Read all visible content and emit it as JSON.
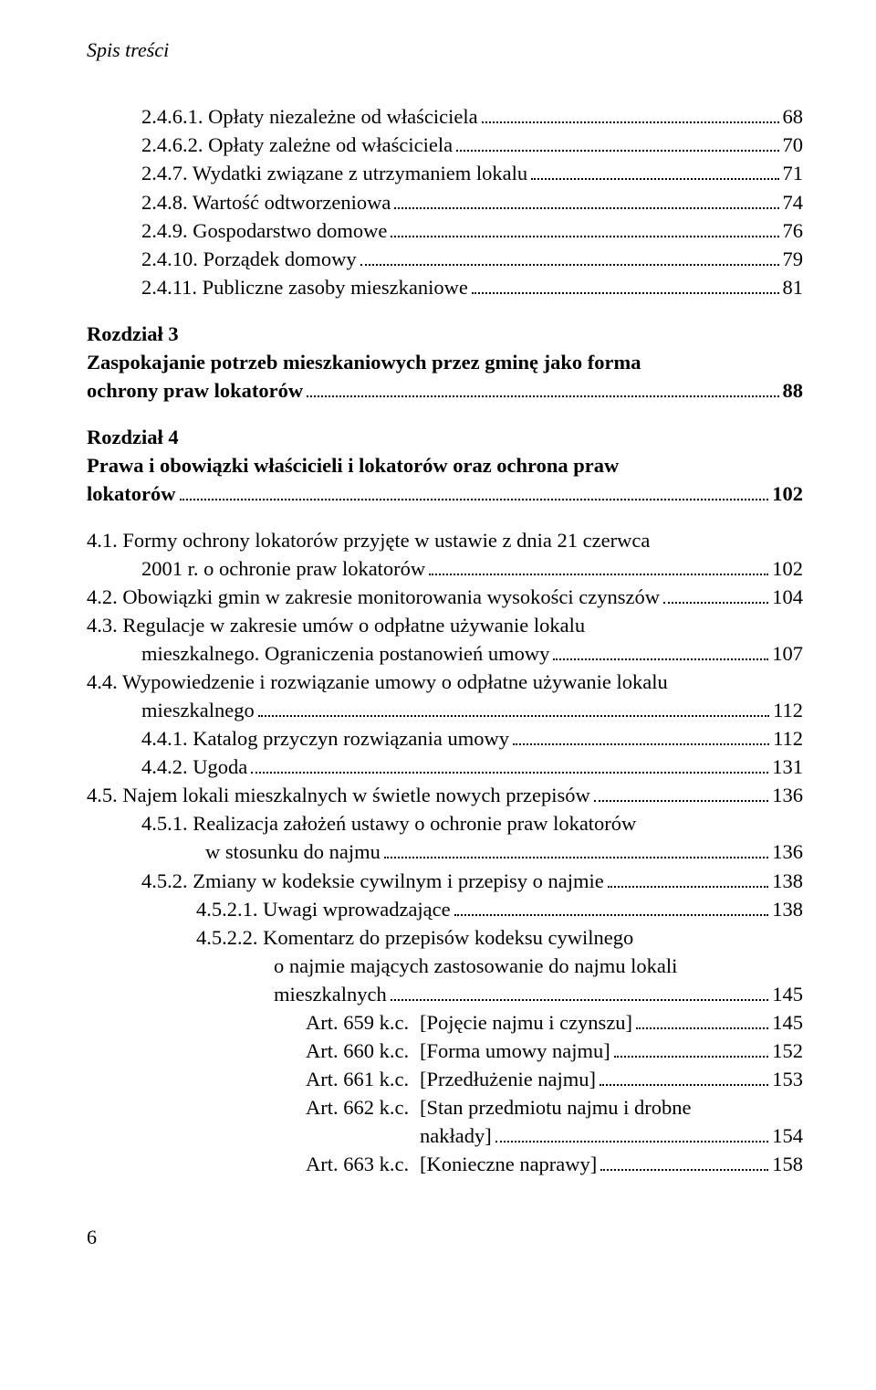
{
  "header": "Spis treści",
  "footer_page": "6",
  "entries": [
    {
      "type": "item",
      "indent": "indent-1",
      "num": "2.4.6.1.",
      "text": "Opłaty niezależne od właściciela",
      "page": "68"
    },
    {
      "type": "item",
      "indent": "indent-1",
      "num": "2.4.6.2.",
      "text": "Opłaty zależne od właściciela",
      "page": "70"
    },
    {
      "type": "item",
      "indent": "indent-1",
      "num": "2.4.7.",
      "text": "Wydatki związane z utrzymaniem lokalu",
      "page": "71"
    },
    {
      "type": "item",
      "indent": "indent-1",
      "num": "2.4.8.",
      "text": "Wartość odtworzeniowa",
      "page": "74"
    },
    {
      "type": "item",
      "indent": "indent-1",
      "num": "2.4.9.",
      "text": "Gospodarstwo domowe",
      "page": "76"
    },
    {
      "type": "item",
      "indent": "indent-1",
      "num": "2.4.10.",
      "text": "Porządek domowy",
      "page": "79"
    },
    {
      "type": "item",
      "indent": "indent-1",
      "num": "2.4.11.",
      "text": "Publiczne zasoby mieszkaniowe",
      "page": "81"
    },
    {
      "type": "chapter",
      "line1": "Rozdział 3",
      "line2": "Zaspokajanie potrzeb mieszkaniowych przez gminę jako forma",
      "line3": "ochrony praw lokatorów",
      "page": "88"
    },
    {
      "type": "chapter",
      "line1": "Rozdział 4",
      "line2": "Prawa i obowiązki właścicieli i lokatorów oraz ochrona praw",
      "line3": "lokatorów",
      "page": "102"
    },
    {
      "type": "multiline",
      "hang": "hang-2",
      "num": "4.1.",
      "textLines": [
        "Formy ochrony lokatorów przyjęte w ustawie z dnia 21 czerwca",
        "2001 r. o ochronie praw lokatorów"
      ],
      "page": "102"
    },
    {
      "type": "item",
      "indent": "indent-2",
      "num": "4.2.",
      "text": "Obowiązki gmin w zakresie monitorowania wysokości czynszów",
      "page": "104"
    },
    {
      "type": "multiline",
      "hang": "hang-2",
      "num": "4.3.",
      "textLines": [
        "Regulacje w zakresie umów o odpłatne używanie lokalu",
        "mieszkalnego. Ograniczenia postanowień umowy"
      ],
      "page": "107"
    },
    {
      "type": "multiline",
      "hang": "hang-2",
      "num": "4.4.",
      "textLines": [
        "Wypowiedzenie i rozwiązanie umowy o odpłatne używanie lokalu",
        "mieszkalnego"
      ],
      "page": "112"
    },
    {
      "type": "item",
      "indent": "indent-1",
      "num": "4.4.1.",
      "text": "Katalog przyczyn rozwiązania umowy",
      "page": "112"
    },
    {
      "type": "item",
      "indent": "indent-1",
      "num": "4.4.2.",
      "text": "Ugoda",
      "page": "131"
    },
    {
      "type": "item",
      "indent": "indent-2",
      "num": "4.5.",
      "text": "Najem lokali mieszkalnych w świetle nowych przepisów",
      "page": "136"
    },
    {
      "type": "multiline",
      "hang": "hang-3",
      "num": "4.5.1.",
      "textLines": [
        "Realizacja założeń ustawy o ochronie praw lokatorów",
        "w stosunku do najmu"
      ],
      "page": "136"
    },
    {
      "type": "item",
      "indent": "indent-1",
      "num": "4.5.2.",
      "text": "Zmiany w kodeksie cywilnym i przepisy o najmie",
      "page": "138"
    },
    {
      "type": "item",
      "indent": "indent-4",
      "num": "4.5.2.1.",
      "text": "Uwagi wprowadzające",
      "page": "138"
    },
    {
      "type": "multiline",
      "hang": "hang-4",
      "num": "4.5.2.2.",
      "textLines": [
        "Komentarz do przepisów kodeksu cywilnego",
        "o najmie mających zastosowanie do najmu lokali",
        "mieszkalnych"
      ],
      "page": "145"
    },
    {
      "type": "art",
      "label": "Art. 659 k.c.",
      "bracket": "[Pojęcie najmu i czynszu]",
      "page": "145"
    },
    {
      "type": "art",
      "label": "Art. 660 k.c.",
      "bracket": "[Forma umowy najmu]",
      "page": "152"
    },
    {
      "type": "art",
      "label": "Art. 661 k.c.",
      "bracket": "[Przedłużenie najmu]",
      "page": "153"
    },
    {
      "type": "art_multi",
      "label": "Art. 662 k.c.",
      "bracketLines": [
        "[Stan przedmiotu najmu i drobne",
        "nakłady]"
      ],
      "page": "154"
    },
    {
      "type": "art",
      "label": "Art. 663 k.c.",
      "bracket": "[Konieczne naprawy]",
      "page": "158"
    }
  ]
}
